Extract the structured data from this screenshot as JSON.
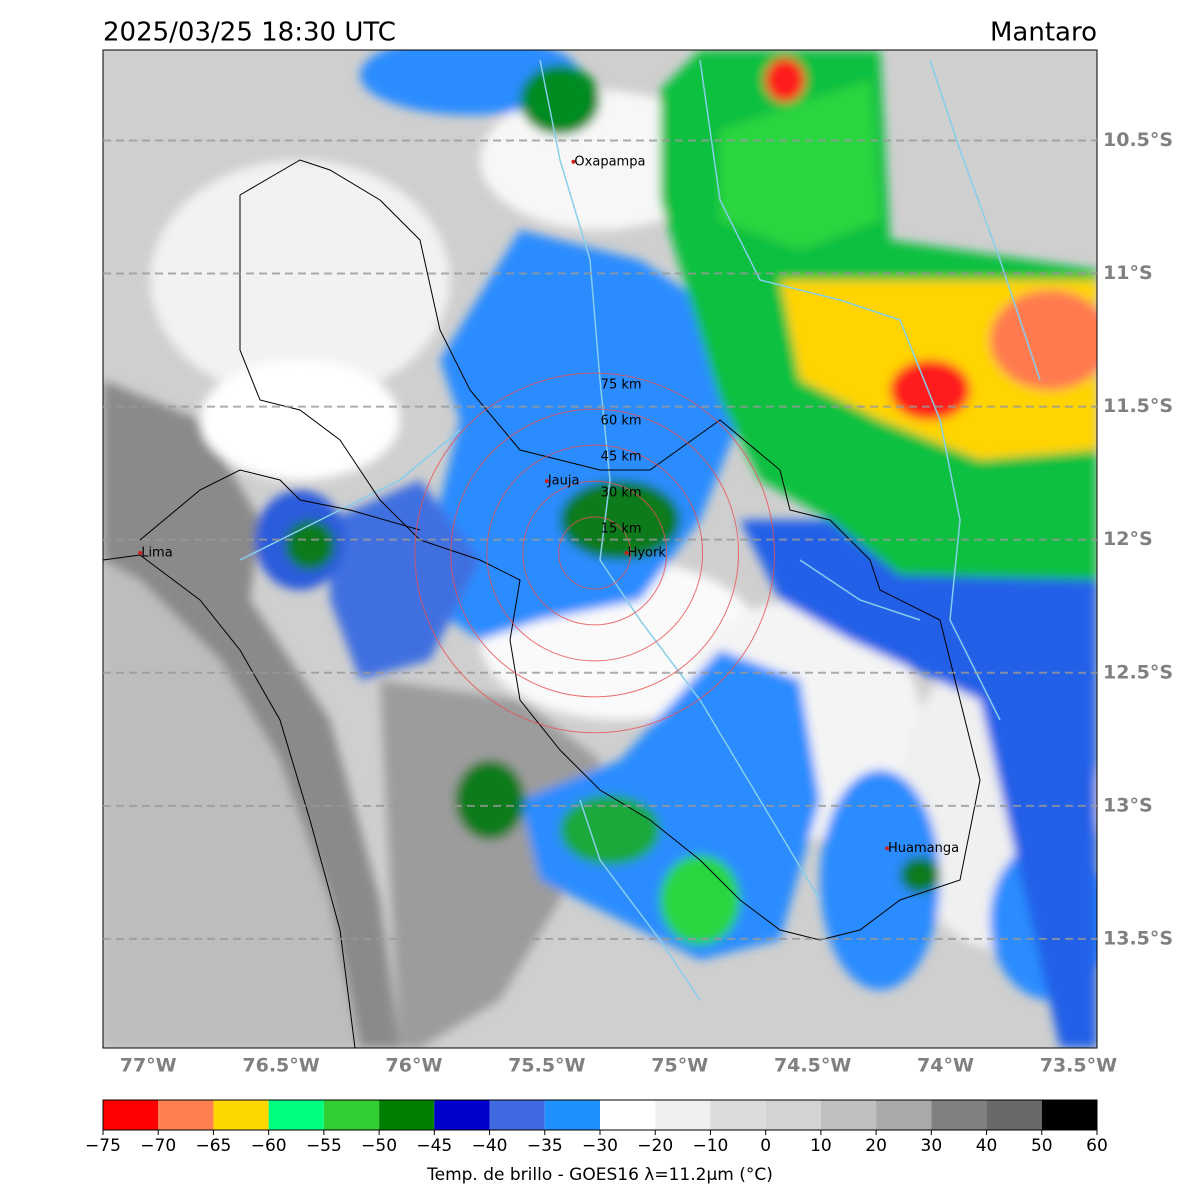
{
  "header": {
    "title": "2025/03/25 18:30 UTC",
    "region": "Mantaro"
  },
  "map": {
    "xlim": [
      -77.17,
      -73.43
    ],
    "ylim": [
      -13.91,
      -10.16
    ],
    "xticks": [
      {
        "value": -77,
        "label": "77°W"
      },
      {
        "value": -76.5,
        "label": "76.5°W"
      },
      {
        "value": -76,
        "label": "76°W"
      },
      {
        "value": -75.5,
        "label": "75.5°W"
      },
      {
        "value": -75,
        "label": "75°W"
      },
      {
        "value": -74.5,
        "label": "74.5°W"
      },
      {
        "value": -74,
        "label": "74°W"
      },
      {
        "value": -73.5,
        "label": "73.5°W"
      }
    ],
    "yticks": [
      {
        "value": -10.5,
        "label": "10.5°S"
      },
      {
        "value": -11,
        "label": "11°S"
      },
      {
        "value": -11.5,
        "label": "11.5°S"
      },
      {
        "value": -12,
        "label": "12°S"
      },
      {
        "value": -12.5,
        "label": "12.5°S"
      },
      {
        "value": -13,
        "label": "13°S"
      },
      {
        "value": -13.5,
        "label": "13.5°S"
      }
    ],
    "grid": true,
    "places": [
      {
        "name": "Oxapampa",
        "lon": -75.4,
        "lat": -10.58
      },
      {
        "name": "Jauja",
        "lon": -75.5,
        "lat": -11.78
      },
      {
        "name": "Hyork",
        "lon": -75.2,
        "lat": -12.05
      },
      {
        "name": "Lima",
        "lon": -77.03,
        "lat": -12.05
      },
      {
        "name": "Huamanga",
        "lon": -74.22,
        "lat": -13.16
      }
    ],
    "rings": {
      "center_lon": -75.32,
      "center_lat": -12.05,
      "radii_km": [
        15,
        30,
        45,
        60,
        75
      ],
      "labels": [
        "15 km",
        "30 km",
        "45 km",
        "60 km",
        "75 km"
      ]
    }
  },
  "colorbar": {
    "label": "Temp. de brillo - GOES16 λ=11.2μm (°C)",
    "ticks": [
      {
        "value": -75,
        "label": "−75"
      },
      {
        "value": -70,
        "label": "−70"
      },
      {
        "value": -65,
        "label": "−65"
      },
      {
        "value": -60,
        "label": "−60"
      },
      {
        "value": -55,
        "label": "−55"
      },
      {
        "value": -50,
        "label": "−50"
      },
      {
        "value": -45,
        "label": "−45"
      },
      {
        "value": -40,
        "label": "−40"
      },
      {
        "value": -35,
        "label": "−35"
      },
      {
        "value": -30,
        "label": "−30"
      },
      {
        "value": -20,
        "label": "−20"
      },
      {
        "value": -10,
        "label": "−10"
      },
      0,
      10,
      20,
      30,
      40,
      50,
      60
    ],
    "colors": [
      "#ff0000",
      "#ff7f50",
      "#ffd700",
      "#00ff7f",
      "#32cd32",
      "#008000",
      "#0000cd",
      "#4169e1",
      "#1e90ff",
      "#ffffff",
      "#f0f0f0",
      "#dcdcdc",
      "#d3d3d3",
      "#c0c0c0",
      "#a9a9a9",
      "#808080",
      "#696969",
      "#000000"
    ]
  }
}
